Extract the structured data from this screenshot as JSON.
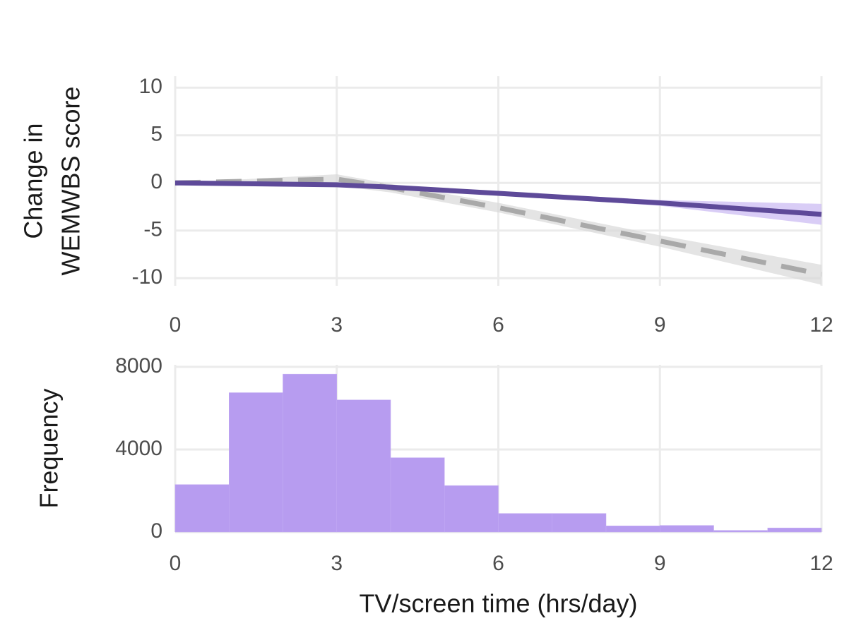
{
  "chart_data": [
    {
      "type": "line",
      "ylabel": [
        "Change in",
        "WEMWBS score"
      ],
      "x": [
        0,
        3,
        4,
        6,
        9,
        12
      ],
      "series": [
        {
          "color": "#a9a9a9",
          "dash": true,
          "values": [
            0,
            0.4,
            -0.5,
            -2.6,
            -6.1,
            -9.6
          ],
          "lower": [
            0,
            -0.3,
            -1.0,
            -3.1,
            -6.7,
            -10.7
          ],
          "upper": [
            0,
            0.9,
            -0.1,
            -2.1,
            -5.5,
            -8.6
          ],
          "band_color": "#d9d9d9"
        },
        {
          "color": "#5e4a99",
          "dash": false,
          "values": [
            0,
            -0.2,
            -0.45,
            -1.1,
            -2.1,
            -3.3
          ],
          "lower": [
            0,
            -0.3,
            -0.6,
            -1.3,
            -2.4,
            -4.4
          ],
          "upper": [
            0,
            -0.1,
            -0.3,
            -0.9,
            -1.8,
            -2.2
          ],
          "band_color": "#c9b8f2"
        }
      ],
      "xlim": [
        0,
        12
      ],
      "xticks": [
        0,
        3,
        6,
        9,
        12
      ],
      "ylim": [
        -10.8,
        11.2
      ],
      "yticks": [
        -10,
        -5,
        0,
        5,
        10
      ],
      "grid": true
    },
    {
      "type": "histogram",
      "xlabel": "TV/screen time (hrs/day)",
      "ylabel": [
        "Frequency"
      ],
      "bins": [
        0,
        1,
        2,
        3,
        4,
        5,
        6,
        7,
        8,
        9,
        10,
        11,
        12
      ],
      "values": [
        2300,
        6750,
        7650,
        6400,
        3600,
        2250,
        900,
        900,
        300,
        320,
        80,
        200
      ],
      "color": "#b79cf0",
      "xlim": [
        0,
        12
      ],
      "xticks": [
        0,
        3,
        6,
        9,
        12
      ],
      "ylim": [
        0,
        8100
      ],
      "yticks": [
        0,
        4000,
        8000
      ],
      "grid": true
    }
  ]
}
